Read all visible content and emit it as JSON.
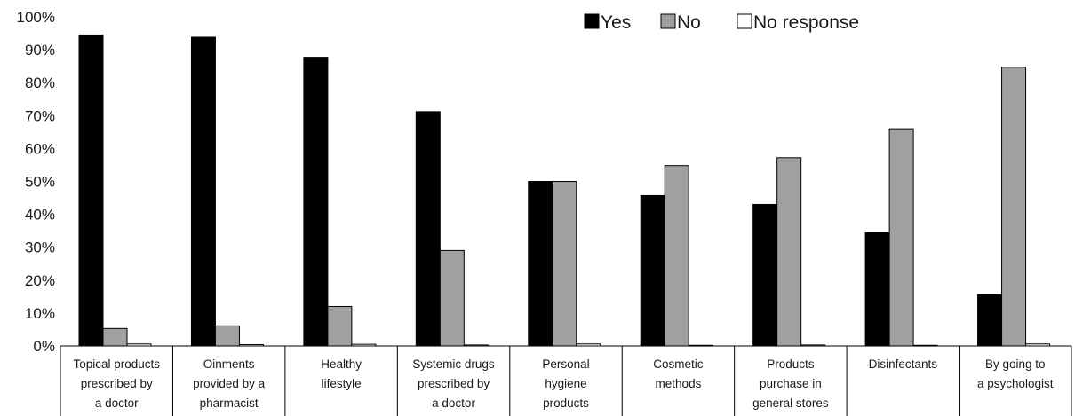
{
  "chart_data": {
    "type": "bar",
    "title": "",
    "xlabel": "",
    "ylabel": "",
    "ylim": [
      0,
      100
    ],
    "yticks": [
      "0%",
      "10%",
      "20%",
      "30%",
      "40%",
      "50%",
      "60%",
      "70%",
      "80%",
      "90%",
      "100%"
    ],
    "legend_position": "top-right",
    "categories": [
      [
        "Topical products",
        "prescribed by",
        "a doctor"
      ],
      [
        "Oinments",
        "provided by a",
        "pharmacist"
      ],
      [
        "Healthy",
        "lifestyle"
      ],
      [
        "Systemic drugs",
        "prescribed by",
        "a doctor"
      ],
      [
        "Personal",
        "hygiene",
        "products"
      ],
      [
        "Cosmetic",
        "methods"
      ],
      [
        "Products",
        "purchase in",
        "general stores"
      ],
      [
        "Disinfectants"
      ],
      [
        "By going to",
        "a psychologist"
      ]
    ],
    "series": [
      {
        "name": "Yes",
        "color": "#000000",
        "values": [
          94.5,
          93.8,
          87.7,
          71.2,
          50.0,
          45.7,
          43.0,
          34.4,
          15.6
        ]
      },
      {
        "name": "No",
        "color": "#a0a0a2",
        "values": [
          5.3,
          6.1,
          12.0,
          29.0,
          50.0,
          54.8,
          57.2,
          66.0,
          84.7
        ]
      },
      {
        "name": "No response",
        "color": "#ffffff",
        "values": [
          0.6,
          0.4,
          0.5,
          0.3,
          0.6,
          0.2,
          0.3,
          0.2,
          0.6
        ]
      }
    ]
  }
}
